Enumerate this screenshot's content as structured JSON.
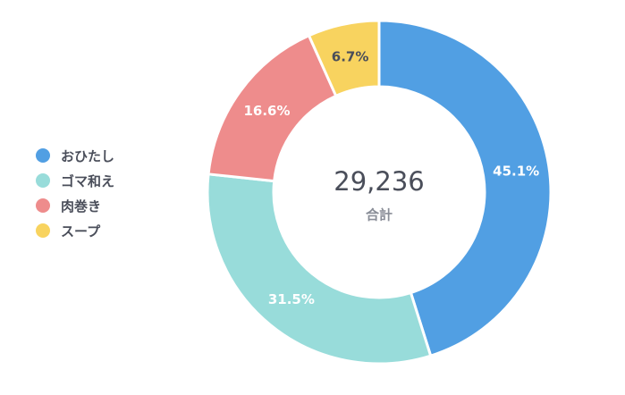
{
  "chart_data": {
    "type": "pie",
    "variant": "donut",
    "categories": [
      "おひたし",
      "ゴマ和え",
      "肉巻き",
      "スープ"
    ],
    "values": [
      45.1,
      31.5,
      16.6,
      6.7
    ],
    "value_labels": [
      "45.1%",
      "31.5%",
      "16.6%",
      "6.7%"
    ],
    "colors": [
      "#519fe3",
      "#98dcda",
      "#ee8c8c",
      "#f8d35f"
    ],
    "label_colors": [
      "#ffffff",
      "#ffffff",
      "#ffffff",
      "#4a4e5a"
    ],
    "center_value": "29,236",
    "center_label": "合計",
    "legend_position": "left",
    "start": "top",
    "direction": "clockwise"
  },
  "legend": {
    "items": [
      {
        "label": "おひたし",
        "color": "#519fe3"
      },
      {
        "label": "ゴマ和え",
        "color": "#98dcda"
      },
      {
        "label": "肉巻き",
        "color": "#ee8c8c"
      },
      {
        "label": "スープ",
        "color": "#f8d35f"
      }
    ]
  }
}
